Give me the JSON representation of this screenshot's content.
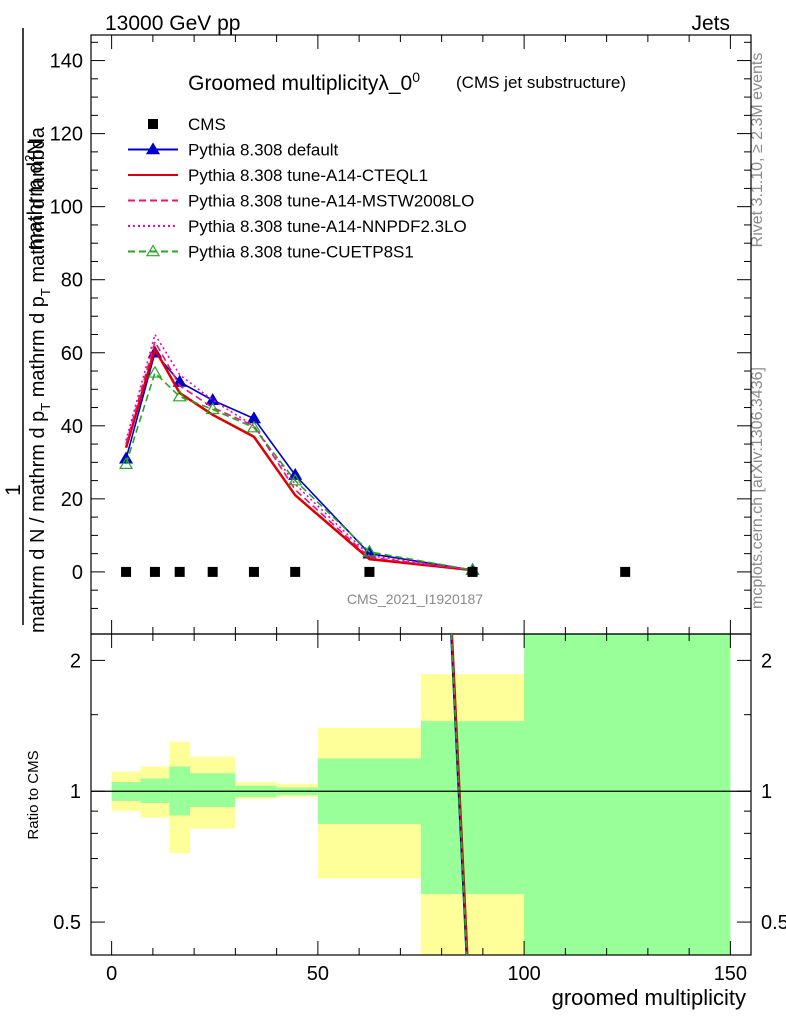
{
  "header": {
    "left": "13000 GeV pp",
    "right": "Jets"
  },
  "side_labels": {
    "rivet": "Rivet 3.1.10, ≥ 2.3M events",
    "mcplots": "mcplots.cern.ch [arXiv:1306.3436]"
  },
  "chart_data": {
    "type": "line",
    "title": "Groomed multiplicityλ_0",
    "title_superscript": "0",
    "subtitle": "(CMS jet substructure)",
    "analysis_id": "CMS_2021_I1920187",
    "xlabel": "groomed multiplicity",
    "ylabel_numerator": "mathrm d",
    "ylabel_numerator_sup": "2",
    "ylabel_numerator_tail": "N",
    "ylabel_denominator": "mathrm d N / mathrm d p",
    "ylabel_denominator_sub": "T",
    "ylabel_denominator_tail": " mathrm d p",
    "ylabel_denominator_tail_sub": "T",
    "ylabel_denominator_end": " mathrm d lambda",
    "ylabel_prefix": "1",
    "ratio_ylabel": "Ratio to CMS",
    "xlim": [
      -5,
      155
    ],
    "ylim": [
      -17,
      147
    ],
    "ratio_ylim": [
      0.42,
      2.3
    ],
    "ratio_scale": "log",
    "x_ticks": [
      0,
      50,
      100,
      150
    ],
    "y_ticks": [
      0,
      20,
      40,
      60,
      80,
      100,
      120,
      140
    ],
    "ratio_ticks": [
      0.5,
      1,
      2
    ],
    "legend_position": "top-left",
    "cms": {
      "name": "CMS",
      "x": [
        3.5,
        10.5,
        16.5,
        24.5,
        34.5,
        44.5,
        62.5,
        87.5,
        124.5
      ],
      "y": [
        0,
        0,
        0,
        0,
        0,
        0,
        0,
        0,
        0
      ]
    },
    "series": [
      {
        "name": "Pythia 8.308 default",
        "color": "#0000cc",
        "style": "solid",
        "marker": "triangle-filled",
        "x": [
          3.5,
          10.5,
          16.5,
          24.5,
          34.5,
          44.5,
          62.5,
          87.5
        ],
        "y": [
          31,
          60,
          52,
          47,
          42,
          26.5,
          5,
          0.5
        ]
      },
      {
        "name": "Pythia 8.308 tune-A14-CTEQL1",
        "color": "#dd0000",
        "style": "solid",
        "marker": "none",
        "x": [
          3.5,
          10.5,
          16.5,
          24.5,
          34.5,
          44.5,
          62.5,
          87.5
        ],
        "y": [
          34,
          61,
          49,
          43,
          37,
          21,
          3.5,
          0.5
        ]
      },
      {
        "name": "Pythia 8.308 tune-A14-MSTW2008LO",
        "color": "#ee1177",
        "style": "dashed",
        "marker": "none",
        "x": [
          3.5,
          10.5,
          16.5,
          24.5,
          34.5,
          44.5,
          62.5,
          87.5
        ],
        "y": [
          35,
          63,
          51,
          45,
          40,
          22.5,
          4,
          0.5
        ]
      },
      {
        "name": "Pythia 8.308 tune-A14-NNPDF2.3LO",
        "color": "#ee00cc",
        "style": "dotted",
        "marker": "none",
        "x": [
          3.5,
          10.5,
          16.5,
          24.5,
          34.5,
          44.5,
          62.5,
          87.5
        ],
        "y": [
          36,
          65,
          54,
          47,
          40,
          24,
          4.5,
          0.5
        ]
      },
      {
        "name": "Pythia 8.308 tune-CUETP8S1",
        "color": "#22aa22",
        "style": "dashed",
        "marker": "triangle-open",
        "x": [
          3.5,
          10.5,
          16.5,
          24.5,
          34.5,
          44.5,
          62.5,
          87.5
        ],
        "y": [
          29.5,
          54.5,
          48,
          44.5,
          39.5,
          25,
          5.5,
          0.5
        ]
      }
    ],
    "ratio_bands": [
      {
        "x0": 0,
        "x1": 7,
        "inner": [
          0.95,
          1.05
        ],
        "outer": [
          0.9,
          1.11
        ]
      },
      {
        "x0": 7,
        "x1": 14,
        "inner": [
          0.94,
          1.07
        ],
        "outer": [
          0.87,
          1.14
        ]
      },
      {
        "x0": 14,
        "x1": 19,
        "inner": [
          0.88,
          1.14
        ],
        "outer": [
          0.72,
          1.3
        ]
      },
      {
        "x0": 19,
        "x1": 30,
        "inner": [
          0.92,
          1.1
        ],
        "outer": [
          0.82,
          1.2
        ]
      },
      {
        "x0": 30,
        "x1": 40,
        "inner": [
          0.97,
          1.03
        ],
        "outer": [
          0.96,
          1.05
        ]
      },
      {
        "x0": 40,
        "x1": 50,
        "inner": [
          0.98,
          1.02
        ],
        "outer": [
          0.97,
          1.04
        ]
      },
      {
        "x0": 50,
        "x1": 75,
        "inner": [
          0.84,
          1.19
        ],
        "outer": [
          0.63,
          1.4
        ]
      },
      {
        "x0": 75,
        "x1": 100,
        "inner": [
          0.58,
          1.45
        ],
        "outer": [
          0.42,
          1.86
        ]
      },
      {
        "x0": 100,
        "x1": 150,
        "inner": [
          0.42,
          2.3
        ],
        "outer": [
          0.42,
          2.3
        ]
      }
    ],
    "ratio_lines": [
      {
        "color": "#0000cc",
        "style": "solid",
        "x": [
          82,
          86
        ],
        "y": [
          2.6,
          0.42
        ]
      },
      {
        "color": "#dd0000",
        "style": "solid",
        "x": [
          82.3,
          86.3
        ],
        "y": [
          2.6,
          0.42
        ]
      },
      {
        "color": "#22aa22",
        "style": "dashed",
        "x": [
          82.1,
          86.1
        ],
        "y": [
          2.6,
          0.42
        ]
      }
    ]
  }
}
